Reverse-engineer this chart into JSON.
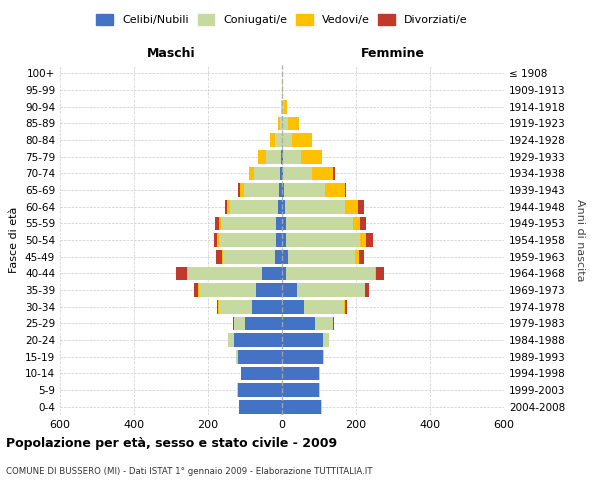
{
  "age_groups": [
    "0-4",
    "5-9",
    "10-14",
    "15-19",
    "20-24",
    "25-29",
    "30-34",
    "35-39",
    "40-44",
    "45-49",
    "50-54",
    "55-59",
    "60-64",
    "65-69",
    "70-74",
    "75-79",
    "80-84",
    "85-89",
    "90-94",
    "95-99",
    "100+"
  ],
  "birth_years": [
    "2004-2008",
    "1999-2003",
    "1994-1998",
    "1989-1993",
    "1984-1988",
    "1979-1983",
    "1974-1978",
    "1969-1973",
    "1964-1968",
    "1959-1963",
    "1954-1958",
    "1949-1953",
    "1944-1948",
    "1939-1943",
    "1934-1938",
    "1929-1933",
    "1924-1928",
    "1919-1923",
    "1914-1918",
    "1909-1913",
    "≤ 1908"
  ],
  "colors": {
    "celibi": "#4472c4",
    "coniugati": "#c5d9a0",
    "vedovi": "#ffc000",
    "divorziati": "#c0392b"
  },
  "male": {
    "celibi": [
      115,
      120,
      110,
      120,
      130,
      100,
      80,
      70,
      55,
      20,
      15,
      15,
      10,
      8,
      5,
      2,
      0,
      0,
      0,
      0,
      0
    ],
    "coniugati": [
      2,
      2,
      2,
      5,
      15,
      30,
      90,
      155,
      200,
      140,
      155,
      150,
      130,
      95,
      70,
      40,
      20,
      5,
      2,
      0,
      0
    ],
    "vedovi": [
      0,
      0,
      0,
      0,
      0,
      0,
      2,
      2,
      2,
      3,
      5,
      5,
      8,
      10,
      15,
      22,
      12,
      5,
      0,
      0,
      0
    ],
    "divorziati": [
      0,
      0,
      0,
      0,
      0,
      2,
      5,
      10,
      30,
      15,
      8,
      10,
      5,
      5,
      0,
      0,
      0,
      0,
      0,
      0,
      0
    ]
  },
  "female": {
    "nubili": [
      105,
      100,
      100,
      110,
      110,
      90,
      60,
      40,
      10,
      15,
      12,
      10,
      8,
      5,
      3,
      2,
      0,
      0,
      0,
      0,
      0
    ],
    "coniugate": [
      2,
      2,
      2,
      4,
      18,
      48,
      108,
      183,
      240,
      182,
      198,
      182,
      162,
      112,
      78,
      48,
      28,
      15,
      5,
      2,
      0
    ],
    "vedove": [
      0,
      0,
      0,
      0,
      0,
      0,
      2,
      2,
      5,
      10,
      16,
      20,
      36,
      52,
      58,
      58,
      52,
      30,
      8,
      2,
      0
    ],
    "divorziate": [
      0,
      0,
      0,
      0,
      0,
      2,
      5,
      10,
      20,
      15,
      20,
      15,
      15,
      5,
      5,
      0,
      0,
      0,
      0,
      0,
      0
    ]
  },
  "title": "Popolazione per età, sesso e stato civile - 2009",
  "subtitle": "COMUNE DI BUSSERO (MI) - Dati ISTAT 1° gennaio 2009 - Elaborazione TUTTITALIA.IT",
  "xlabel_left": "Maschi",
  "xlabel_right": "Femmine",
  "ylabel_left": "Fasce di età",
  "ylabel_right": "Anni di nascita",
  "xlim": 600,
  "legend_labels": [
    "Celibi/Nubili",
    "Coniugati/e",
    "Vedovi/e",
    "Divorziati/e"
  ]
}
